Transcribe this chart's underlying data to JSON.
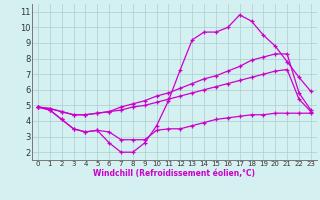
{
  "xlabel": "Windchill (Refroidissement éolien,°C)",
  "xlim": [
    -0.5,
    23.5
  ],
  "ylim": [
    1.5,
    11.5
  ],
  "yticks": [
    2,
    3,
    4,
    5,
    6,
    7,
    8,
    9,
    10,
    11
  ],
  "xticks": [
    0,
    1,
    2,
    3,
    4,
    5,
    6,
    7,
    8,
    9,
    10,
    11,
    12,
    13,
    14,
    15,
    16,
    17,
    18,
    19,
    20,
    21,
    22,
    23
  ],
  "bg_color": "#d5f0f0",
  "line_color": "#cc00cc",
  "grid_color": "#aacece",
  "lines": [
    {
      "x": [
        0,
        1,
        2,
        3,
        4,
        5,
        6,
        7,
        8,
        9,
        10,
        11,
        12,
        13,
        14,
        15,
        16,
        17,
        18,
        19,
        20,
        21,
        22,
        23
      ],
      "y": [
        4.9,
        4.7,
        4.1,
        3.5,
        3.3,
        3.4,
        3.3,
        2.8,
        2.8,
        2.8,
        3.4,
        3.5,
        3.5,
        3.7,
        3.9,
        4.1,
        4.2,
        4.3,
        4.4,
        4.4,
        4.5,
        4.5,
        4.5,
        4.5
      ]
    },
    {
      "x": [
        0,
        1,
        2,
        3,
        4,
        5,
        6,
        7,
        8,
        9,
        10,
        11,
        12,
        13,
        14,
        15,
        16,
        17,
        18,
        19,
        20,
        21,
        22,
        23
      ],
      "y": [
        4.9,
        4.8,
        4.6,
        4.4,
        4.4,
        4.5,
        4.6,
        4.7,
        4.9,
        5.0,
        5.2,
        5.4,
        5.6,
        5.8,
        6.0,
        6.2,
        6.4,
        6.6,
        6.8,
        7.0,
        7.2,
        7.3,
        5.4,
        4.6
      ]
    },
    {
      "x": [
        0,
        1,
        2,
        3,
        4,
        5,
        6,
        7,
        8,
        9,
        10,
        11,
        12,
        13,
        14,
        15,
        16,
        17,
        18,
        19,
        20,
        21,
        22,
        23
      ],
      "y": [
        4.9,
        4.8,
        4.6,
        4.4,
        4.4,
        4.5,
        4.6,
        4.9,
        5.1,
        5.3,
        5.6,
        5.8,
        6.1,
        6.4,
        6.7,
        6.9,
        7.2,
        7.5,
        7.9,
        8.1,
        8.3,
        8.3,
        5.8,
        4.7
      ]
    },
    {
      "x": [
        0,
        1,
        2,
        3,
        4,
        5,
        6,
        7,
        8,
        9,
        10,
        11,
        12,
        13,
        14,
        15,
        16,
        17,
        18,
        19,
        20,
        21,
        22,
        23
      ],
      "y": [
        4.9,
        4.7,
        4.1,
        3.5,
        3.3,
        3.4,
        2.6,
        2.0,
        2.0,
        2.6,
        3.7,
        5.3,
        7.3,
        9.2,
        9.7,
        9.7,
        10.0,
        10.8,
        10.4,
        9.5,
        8.8,
        7.8,
        6.8,
        5.9
      ]
    }
  ]
}
